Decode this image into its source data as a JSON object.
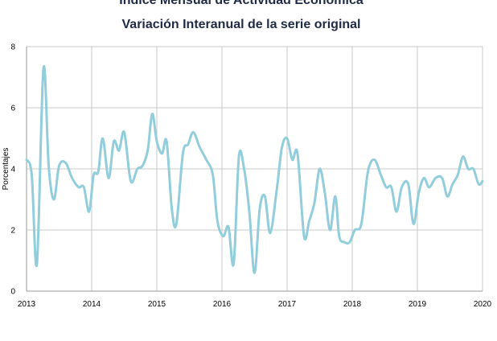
{
  "chart_data": {
    "type": "line",
    "title": "Índice Mensual de  Actividad Económica",
    "subtitle": "Variación Interanual de la serie original",
    "ylabel": "Porcentajes",
    "xlabel": "",
    "ylim": [
      0,
      8
    ],
    "xlim": [
      2013,
      2020
    ],
    "y_ticks": [
      "0",
      "2",
      "4",
      "6",
      "8"
    ],
    "x_ticks": [
      "2013",
      "2014",
      "2015",
      "2016",
      "2017",
      "2018",
      "2019",
      "2020"
    ],
    "grid": true,
    "line_color": "#92cddc",
    "series": [
      {
        "points": [
          [
            2013.0,
            4.3
          ],
          [
            2013.08,
            3.8
          ],
          [
            2013.16,
            0.9
          ],
          [
            2013.26,
            7.3
          ],
          [
            2013.34,
            4.1
          ],
          [
            2013.42,
            3.0
          ],
          [
            2013.5,
            4.1
          ],
          [
            2013.6,
            4.2
          ],
          [
            2013.7,
            3.7
          ],
          [
            2013.8,
            3.4
          ],
          [
            2013.88,
            3.4
          ],
          [
            2013.96,
            2.6
          ],
          [
            2014.03,
            3.8
          ],
          [
            2014.1,
            3.9
          ],
          [
            2014.17,
            5.0
          ],
          [
            2014.26,
            3.7
          ],
          [
            2014.34,
            4.9
          ],
          [
            2014.42,
            4.6
          ],
          [
            2014.5,
            5.2
          ],
          [
            2014.6,
            3.6
          ],
          [
            2014.7,
            4.0
          ],
          [
            2014.78,
            4.1
          ],
          [
            2014.86,
            4.6
          ],
          [
            2014.93,
            5.8
          ],
          [
            2015.0,
            4.9
          ],
          [
            2015.08,
            4.5
          ],
          [
            2015.15,
            4.9
          ],
          [
            2015.23,
            2.7
          ],
          [
            2015.3,
            2.2
          ],
          [
            2015.4,
            4.5
          ],
          [
            2015.48,
            4.8
          ],
          [
            2015.56,
            5.2
          ],
          [
            2015.66,
            4.7
          ],
          [
            2015.76,
            4.3
          ],
          [
            2015.86,
            3.8
          ],
          [
            2015.93,
            2.3
          ],
          [
            2016.02,
            1.8
          ],
          [
            2016.1,
            2.1
          ],
          [
            2016.18,
            0.9
          ],
          [
            2016.26,
            4.4
          ],
          [
            2016.34,
            4.0
          ],
          [
            2016.42,
            2.6
          ],
          [
            2016.5,
            0.6
          ],
          [
            2016.58,
            2.7
          ],
          [
            2016.66,
            3.1
          ],
          [
            2016.74,
            1.9
          ],
          [
            2016.84,
            3.3
          ],
          [
            2016.92,
            4.7
          ],
          [
            2017.0,
            5.0
          ],
          [
            2017.08,
            4.3
          ],
          [
            2017.16,
            4.5
          ],
          [
            2017.26,
            1.8
          ],
          [
            2017.34,
            2.3
          ],
          [
            2017.42,
            2.9
          ],
          [
            2017.5,
            4.0
          ],
          [
            2017.58,
            3.2
          ],
          [
            2017.66,
            2.0
          ],
          [
            2017.74,
            3.1
          ],
          [
            2017.8,
            1.8
          ],
          [
            2017.88,
            1.6
          ],
          [
            2017.96,
            1.6
          ],
          [
            2018.04,
            2.0
          ],
          [
            2018.14,
            2.2
          ],
          [
            2018.24,
            3.9
          ],
          [
            2018.34,
            4.3
          ],
          [
            2018.44,
            3.8
          ],
          [
            2018.52,
            3.4
          ],
          [
            2018.6,
            3.4
          ],
          [
            2018.68,
            2.6
          ],
          [
            2018.76,
            3.4
          ],
          [
            2018.86,
            3.5
          ],
          [
            2018.94,
            2.2
          ],
          [
            2019.02,
            3.2
          ],
          [
            2019.1,
            3.7
          ],
          [
            2019.18,
            3.4
          ],
          [
            2019.28,
            3.7
          ],
          [
            2019.38,
            3.7
          ],
          [
            2019.46,
            3.1
          ],
          [
            2019.54,
            3.5
          ],
          [
            2019.62,
            3.8
          ],
          [
            2019.7,
            4.4
          ],
          [
            2019.78,
            4.0
          ],
          [
            2019.86,
            4.0
          ],
          [
            2019.94,
            3.5
          ],
          [
            2020.0,
            3.6
          ]
        ]
      }
    ]
  }
}
